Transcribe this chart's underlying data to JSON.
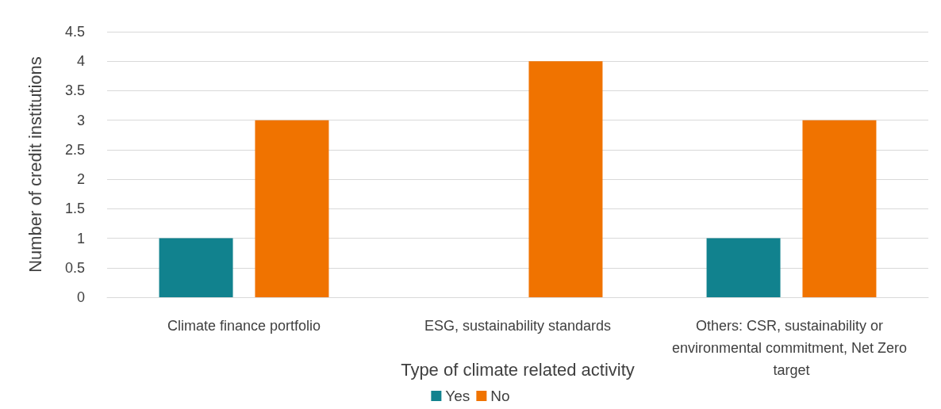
{
  "chart_data": {
    "type": "bar",
    "xlabel": "Type of climate related activity",
    "ylabel": "Number of credit institutions",
    "categories": [
      "Climate finance portfolio",
      "ESG, sustainability standards",
      "Others: CSR, sustainability or environmental commitment, Net Zero target"
    ],
    "series": [
      {
        "name": "Yes",
        "color": "#11828e",
        "values": [
          1,
          0,
          1
        ]
      },
      {
        "name": "No",
        "color": "#f07300",
        "values": [
          3,
          4,
          3
        ]
      }
    ],
    "ylim": [
      0,
      4.5
    ],
    "yticks": [
      0,
      0.5,
      1,
      1.5,
      2,
      2.5,
      3,
      3.5,
      4,
      4.5
    ],
    "grid": "y",
    "legend": "bottom"
  }
}
